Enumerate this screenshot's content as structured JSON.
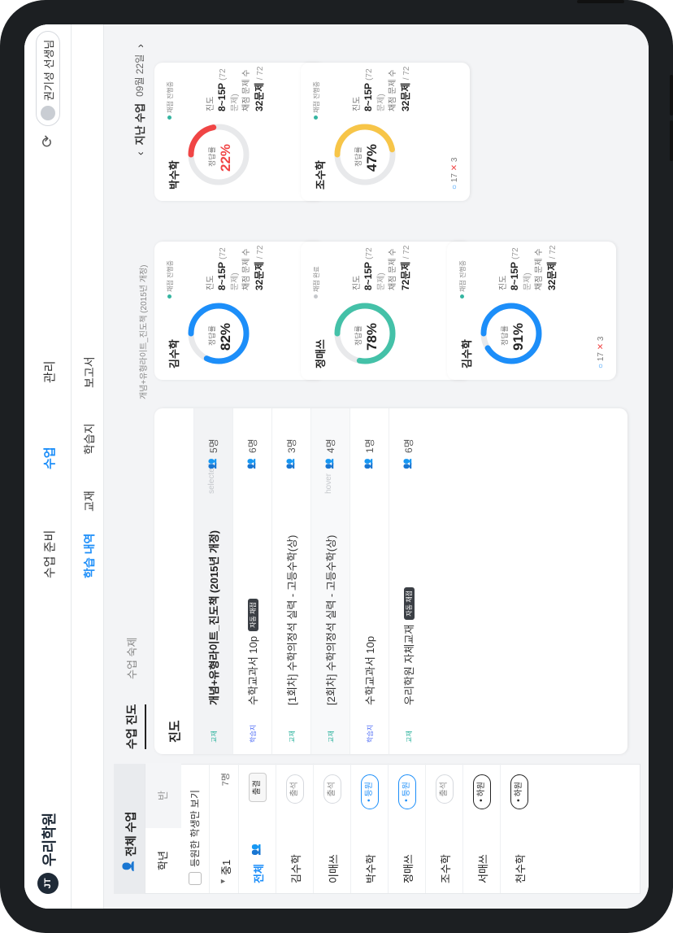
{
  "app": {
    "logo_mark": "JT",
    "logo_text": "우리학원"
  },
  "nav": {
    "items": [
      {
        "label": "수업 준비",
        "active": false
      },
      {
        "label": "수업",
        "active": true
      },
      {
        "label": "관리",
        "active": false
      }
    ],
    "teacher": "권기성 선생님"
  },
  "subnav": {
    "items": [
      {
        "label": "학습 내역",
        "active": true
      },
      {
        "label": "교재",
        "active": false
      },
      {
        "label": "학습지",
        "active": false
      },
      {
        "label": "보고서",
        "active": false
      }
    ]
  },
  "left": {
    "title": "전체 수업",
    "tabs": [
      "학년",
      "반"
    ],
    "checkbox_label": "등원한 학생만 보기",
    "group": {
      "name": "중1",
      "count": "7명"
    },
    "all": {
      "label": "전체",
      "action": "출결"
    },
    "students": [
      {
        "name": "김수학",
        "status": "출석",
        "state": "attend"
      },
      {
        "name": "이매쓰",
        "status": "출석",
        "state": "attend"
      },
      {
        "name": "박수학",
        "status": "• 등원",
        "state": "on"
      },
      {
        "name": "정매쓰",
        "status": "• 등원",
        "state": "on"
      },
      {
        "name": "조수학",
        "status": "출석",
        "state": "attend"
      },
      {
        "name": "서매쓰",
        "status": "• 하원",
        "state": "off"
      },
      {
        "name": "천수학",
        "status": "• 하원",
        "state": "off"
      }
    ]
  },
  "main": {
    "tabs": [
      "수업 진도",
      "수업 숙제"
    ],
    "table_title": "진도",
    "rows": [
      {
        "badge": "교재",
        "badge_type": "textbook",
        "title": "개념+유형라이트_진도책 (2015년 개정)",
        "chip": "",
        "note": "selected",
        "count": "5명"
      },
      {
        "badge": "학습지",
        "badge_type": "worksheet",
        "title": "수학교과서 10p",
        "chip": "자동 채점",
        "note": "",
        "count": "6명"
      },
      {
        "badge": "교재",
        "badge_type": "textbook",
        "title": "[1회차] 수학의정석 실력 - 고등수학(상)",
        "chip": "",
        "note": "",
        "count": "3명"
      },
      {
        "badge": "교재",
        "badge_type": "textbook",
        "title": "[2회차] 수학의정석 실력 - 고등수학(상)",
        "chip": "",
        "note": "hover",
        "count": "4명"
      },
      {
        "badge": "학습지",
        "badge_type": "worksheet",
        "title": "수학교과서 10p",
        "chip": "",
        "note": "",
        "count": "1명"
      },
      {
        "badge": "교재",
        "badge_type": "textbook",
        "title": "우리학원 자체교재",
        "chip": "자동 채점",
        "note": "",
        "count": "6명"
      }
    ]
  },
  "right": {
    "header": {
      "prefix": "지난 수업",
      "date": "09월 22일"
    },
    "caption": "개념+유형라이트_진도책 (2015년 개정)",
    "labels": {
      "rate": "정답률",
      "progress": "진도",
      "graded": "채점 문제 수",
      "problems_unit": "문제",
      "total": "/ 72"
    },
    "students": [
      {
        "name": "박수학",
        "status": "채점 진행중",
        "rate": "22%",
        "rate_value": 22,
        "progress": "8~15P",
        "progress_note": "(72문제)",
        "graded": "32",
        "correct": "17",
        "wrong": "3",
        "color": "#f04545"
      },
      {
        "name": "조수학",
        "status": "채점 진행중",
        "rate": "47%",
        "rate_value": 47,
        "progress": "8~15P",
        "progress_note": "(72문제)",
        "graded": "32",
        "correct": "17",
        "wrong": "3",
        "color": "#f7c548"
      },
      {
        "name": "김수학",
        "status": "채점 진행중",
        "rate": "82%",
        "rate_value": 82,
        "progress": "8~15P",
        "progress_note": "(72문제)",
        "graded": "32",
        "correct": "17",
        "wrong": "3",
        "color": "#1c8ef9"
      },
      {
        "name": "정매쓰",
        "status": "채점 완료",
        "rate": "78%",
        "rate_value": 78,
        "progress": "8~15P",
        "progress_note": "(72문제)",
        "graded": "72",
        "correct": "17",
        "wrong": "3",
        "color": "#44c1a8"
      },
      {
        "name": "김수학",
        "status": "채점 진행중",
        "rate": "91%",
        "rate_value": 91,
        "progress": "8~15P",
        "progress_note": "(72문제)",
        "graded": "32",
        "correct": "17",
        "wrong": "3",
        "color": "#1c8ef9"
      }
    ]
  }
}
